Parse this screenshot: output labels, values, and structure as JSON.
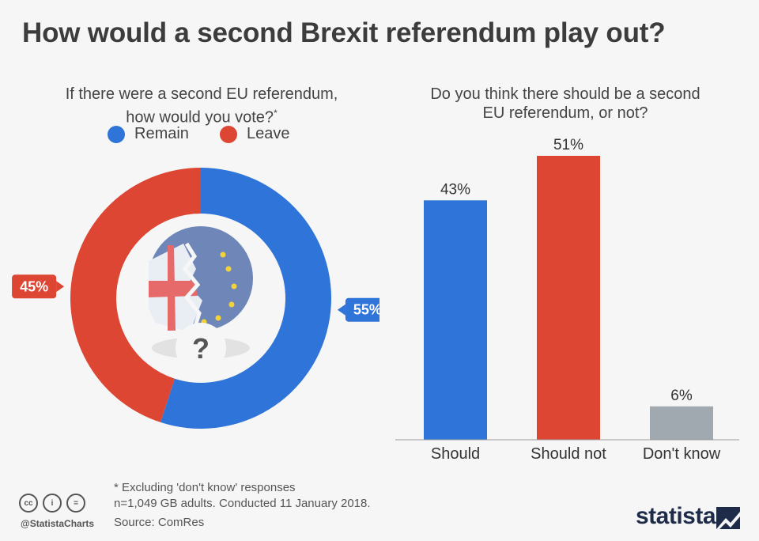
{
  "title": "How would a second Brexit referendum play out?",
  "colors": {
    "remain": "#2e74d9",
    "leave": "#de4634",
    "dont_know": "#a0a8b0",
    "background": "#f6f6f6"
  },
  "chart_data": [
    {
      "type": "pie",
      "style": "donut",
      "title_lines": [
        "If there were a second EU referendum,",
        "how would you vote?"
      ],
      "title_mark": "*",
      "legend": [
        "Remain",
        "Leave"
      ],
      "legend_placement": "top",
      "slices": [
        {
          "label": "Remain",
          "value": 55,
          "display": "55%",
          "color": "#2e74d9"
        },
        {
          "label": "Leave",
          "value": 45,
          "display": "45%",
          "color": "#de4634"
        }
      ]
    },
    {
      "type": "bar",
      "title_lines": [
        "Do you think there should be a second",
        "EU referendum, or not?"
      ],
      "categories": [
        "Should",
        "Should not",
        "Don't know"
      ],
      "values": [
        43,
        51,
        6
      ],
      "value_labels": [
        "43%",
        "51%",
        "6%"
      ],
      "colors": [
        "#2e74d9",
        "#de4634",
        "#a0a8b0"
      ],
      "ylim": [
        0,
        51
      ],
      "grid": false
    }
  ],
  "footer": {
    "note_1": "* Excluding 'don't know' responses",
    "note_2": "n=1,049 GB adults. Conducted 11 January 2018.",
    "source": "Source: ComRes",
    "handle": "@StatistaCharts",
    "brand": "statista",
    "cc_icons": [
      "cc-icon",
      "by-icon",
      "nd-icon"
    ],
    "cc_glyphs": [
      "cc",
      "i",
      "="
    ]
  }
}
